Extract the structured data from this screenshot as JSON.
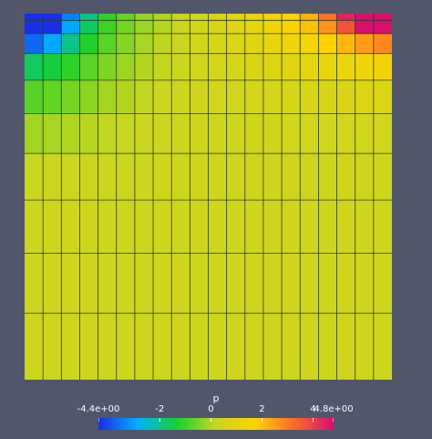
{
  "app": {
    "type": "scientific-visualization-render-view"
  },
  "field": {
    "name": "p",
    "range": [
      -4.4,
      4.8
    ],
    "colormap": [
      "#1a2ee8",
      "#00b2ff",
      "#18d12a",
      "#c9d61f",
      "#ffd400",
      "#ff6a2a",
      "#d90f6e"
    ]
  },
  "mesh": {
    "columns": 20,
    "row_heights_relative": [
      0.25,
      0.5,
      0.75,
      1,
      1.25,
      1.5,
      1.75,
      2,
      2.25,
      2.5
    ],
    "background_mesh_color": "#c2d11d",
    "line_color": "#2a3a24"
  },
  "colorbar": {
    "title": "p",
    "ticks": [
      {
        "label": "-4.4e+00",
        "value": -4.4
      },
      {
        "label": "-2",
        "value": -2
      },
      {
        "label": "0",
        "value": 0
      },
      {
        "label": "2",
        "value": 2
      },
      {
        "label": "4",
        "value": 4
      },
      {
        "label": "4.8e+00",
        "value": 4.8
      }
    ]
  }
}
